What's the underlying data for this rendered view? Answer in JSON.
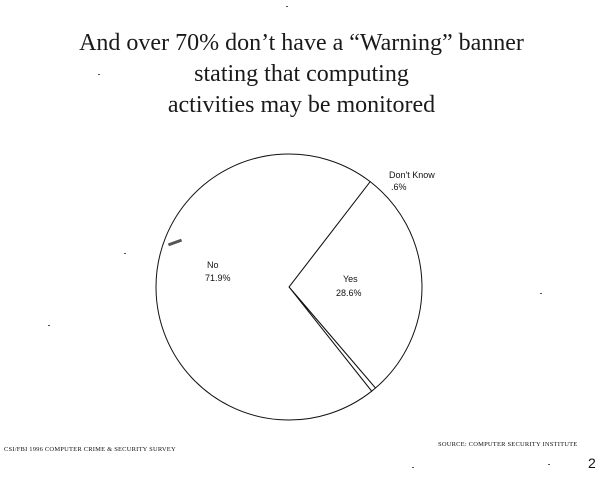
{
  "title_lines": [
    "And over 70% don’t have a “Warning” banner",
    "stating that computing",
    "activities may be monitored"
  ],
  "footer": {
    "left": "CSI/FBI 1996 COMPUTER CRIME & SECURITY SURVEY",
    "right": "SOURCE: COMPUTER SECURITY INSTITUTE",
    "page_mark": "2"
  },
  "chart_data": {
    "type": "pie",
    "slices": [
      {
        "label": "Yes",
        "value": 28.6,
        "value_label": "28.6%"
      },
      {
        "label": "Don't Know",
        "value": 0.6,
        "value_label": ".6%"
      },
      {
        "label": "No",
        "value": 71.9,
        "value_label": "71.9%"
      }
    ],
    "fill": "#ffffff",
    "stroke": "#111111"
  }
}
